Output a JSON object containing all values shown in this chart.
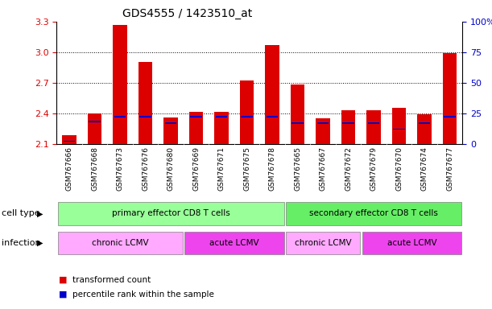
{
  "title": "GDS4555 / 1423510_at",
  "samples": [
    "GSM767666",
    "GSM767668",
    "GSM767673",
    "GSM767676",
    "GSM767680",
    "GSM767669",
    "GSM767671",
    "GSM767675",
    "GSM767678",
    "GSM767665",
    "GSM767667",
    "GSM767672",
    "GSM767679",
    "GSM767670",
    "GSM767674",
    "GSM767677"
  ],
  "transformed_count": [
    2.18,
    2.4,
    3.27,
    2.9,
    2.36,
    2.41,
    2.41,
    2.72,
    3.07,
    2.68,
    2.35,
    2.43,
    2.43,
    2.45,
    2.39,
    2.99
  ],
  "percentile_rank": [
    2,
    18,
    22,
    22,
    17,
    22,
    22,
    22,
    22,
    17,
    17,
    17,
    17,
    12,
    17,
    22
  ],
  "ylim_left": [
    2.1,
    3.3
  ],
  "ylim_right": [
    0,
    100
  ],
  "yticks_left": [
    2.1,
    2.4,
    2.7,
    3.0,
    3.3
  ],
  "yticks_right": [
    0,
    25,
    50,
    75,
    100
  ],
  "bar_color": "#dd0000",
  "blue_color": "#0000cc",
  "cell_type_groups": [
    {
      "label": "primary effector CD8 T cells",
      "start": 0,
      "end": 8,
      "color": "#99ff99"
    },
    {
      "label": "secondary effector CD8 T cells",
      "start": 9,
      "end": 15,
      "color": "#66ee66"
    }
  ],
  "infection_groups": [
    {
      "label": "chronic LCMV",
      "start": 0,
      "end": 4,
      "color": "#ffaaff"
    },
    {
      "label": "acute LCMV",
      "start": 5,
      "end": 8,
      "color": "#ee44ee"
    },
    {
      "label": "chronic LCMV",
      "start": 9,
      "end": 11,
      "color": "#ffaaff"
    },
    {
      "label": "acute LCMV",
      "start": 12,
      "end": 15,
      "color": "#ee44ee"
    }
  ],
  "cell_type_label": "cell type",
  "infection_label": "infection",
  "legend_items": [
    {
      "label": "transformed count",
      "color": "#dd0000"
    },
    {
      "label": "percentile rank within the sample",
      "color": "#0000cc"
    }
  ],
  "bg_color": "#ffffff",
  "tick_color_left": "#dd0000",
  "tick_color_right": "#0000cc",
  "xtick_bg_color": "#dddddd",
  "grid_yticks": [
    2.4,
    2.7,
    3.0
  ]
}
